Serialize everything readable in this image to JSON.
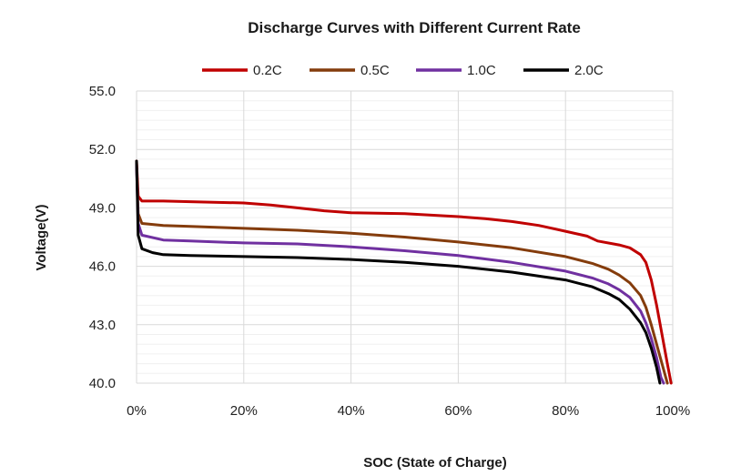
{
  "chart_data": {
    "type": "line",
    "title": "Discharge Curves with Different Current Rate",
    "xlabel": "SOC (State of Charge)",
    "ylabel": "Voltage(V)",
    "xlim": [
      0,
      100
    ],
    "ylim": [
      40,
      55
    ],
    "x_ticks": [
      0,
      20,
      40,
      60,
      80,
      100
    ],
    "x_tick_labels": [
      "0%",
      "20%",
      "40%",
      "60%",
      "80%",
      "100%"
    ],
    "y_ticks": [
      40,
      43,
      46,
      49,
      52,
      55
    ],
    "y_tick_labels": [
      "40.0",
      "43.0",
      "46.0",
      "49.0",
      "52.0",
      "55.0"
    ],
    "grid": true,
    "legend_position": "top",
    "series": [
      {
        "name": "0.2C",
        "color": "#c00000",
        "points": [
          [
            0,
            51.4
          ],
          [
            0.3,
            49.6
          ],
          [
            1,
            49.35
          ],
          [
            5,
            49.35
          ],
          [
            10,
            49.32
          ],
          [
            20,
            49.25
          ],
          [
            25,
            49.15
          ],
          [
            30,
            49.0
          ],
          [
            35,
            48.85
          ],
          [
            40,
            48.75
          ],
          [
            50,
            48.7
          ],
          [
            60,
            48.55
          ],
          [
            65,
            48.45
          ],
          [
            70,
            48.3
          ],
          [
            75,
            48.1
          ],
          [
            80,
            47.8
          ],
          [
            84,
            47.55
          ],
          [
            86,
            47.3
          ],
          [
            90,
            47.1
          ],
          [
            92,
            46.95
          ],
          [
            94,
            46.6
          ],
          [
            95,
            46.2
          ],
          [
            96,
            45.3
          ],
          [
            97,
            44.0
          ],
          [
            98,
            42.5
          ],
          [
            99,
            41.0
          ],
          [
            99.7,
            40.0
          ]
        ]
      },
      {
        "name": "0.5C",
        "color": "#843c0c",
        "points": [
          [
            0,
            51.3
          ],
          [
            0.3,
            48.7
          ],
          [
            1,
            48.2
          ],
          [
            5,
            48.1
          ],
          [
            10,
            48.05
          ],
          [
            20,
            47.95
          ],
          [
            30,
            47.85
          ],
          [
            40,
            47.7
          ],
          [
            50,
            47.5
          ],
          [
            60,
            47.25
          ],
          [
            70,
            46.95
          ],
          [
            80,
            46.5
          ],
          [
            85,
            46.15
          ],
          [
            88,
            45.85
          ],
          [
            90,
            45.55
          ],
          [
            92,
            45.15
          ],
          [
            94,
            44.5
          ],
          [
            95,
            43.9
          ],
          [
            96,
            43.0
          ],
          [
            97,
            42.0
          ],
          [
            98,
            41.0
          ],
          [
            99,
            40.0
          ]
        ]
      },
      {
        "name": "1.0C",
        "color": "#7030a0",
        "points": [
          [
            0,
            51.2
          ],
          [
            0.3,
            48.2
          ],
          [
            1,
            47.6
          ],
          [
            5,
            47.35
          ],
          [
            10,
            47.3
          ],
          [
            20,
            47.2
          ],
          [
            30,
            47.15
          ],
          [
            40,
            47.0
          ],
          [
            50,
            46.8
          ],
          [
            60,
            46.55
          ],
          [
            70,
            46.2
          ],
          [
            80,
            45.75
          ],
          [
            85,
            45.4
          ],
          [
            88,
            45.1
          ],
          [
            90,
            44.8
          ],
          [
            92,
            44.4
          ],
          [
            94,
            43.7
          ],
          [
            95,
            43.1
          ],
          [
            96,
            42.3
          ],
          [
            97,
            41.3
          ],
          [
            97.8,
            40.3
          ],
          [
            98.3,
            40.0
          ]
        ]
      },
      {
        "name": "2.0C",
        "color": "#000000",
        "points": [
          [
            0,
            51.4
          ],
          [
            0.3,
            47.6
          ],
          [
            1,
            46.9
          ],
          [
            3,
            46.7
          ],
          [
            5,
            46.6
          ],
          [
            10,
            46.55
          ],
          [
            20,
            46.5
          ],
          [
            30,
            46.45
          ],
          [
            40,
            46.35
          ],
          [
            50,
            46.2
          ],
          [
            60,
            46.0
          ],
          [
            70,
            45.7
          ],
          [
            80,
            45.3
          ],
          [
            85,
            44.95
          ],
          [
            88,
            44.6
          ],
          [
            90,
            44.3
          ],
          [
            92,
            43.8
          ],
          [
            94,
            43.1
          ],
          [
            95,
            42.6
          ],
          [
            96,
            41.8
          ],
          [
            97,
            40.8
          ],
          [
            97.6,
            40.0
          ]
        ]
      }
    ]
  }
}
